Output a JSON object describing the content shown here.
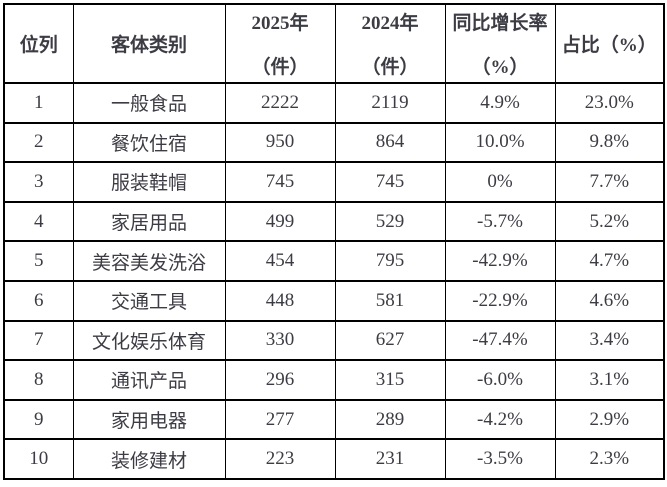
{
  "colors": {
    "background": "#ffffff",
    "border": "#000000",
    "text": "#3c3c44"
  },
  "table": {
    "header": [
      {
        "line1": "位列",
        "line2": ""
      },
      {
        "line1": "客体类别",
        "line2": ""
      },
      {
        "line1": "2025年",
        "line2": "（件）"
      },
      {
        "line1": "2024年",
        "line2": "（件）"
      },
      {
        "line1": "同比增长率",
        "line2": "（%）"
      },
      {
        "line1": "占比（%）",
        "line2": ""
      }
    ],
    "rows": [
      {
        "rank": "1",
        "category": "一般食品",
        "y2025": "2222",
        "y2024": "2119",
        "growth": "4.9%",
        "share": "23.0%"
      },
      {
        "rank": "2",
        "category": "餐饮住宿",
        "y2025": "950",
        "y2024": "864",
        "growth": "10.0%",
        "share": "9.8%"
      },
      {
        "rank": "3",
        "category": "服装鞋帽",
        "y2025": "745",
        "y2024": "745",
        "growth": "0%",
        "share": "7.7%"
      },
      {
        "rank": "4",
        "category": "家居用品",
        "y2025": "499",
        "y2024": "529",
        "growth": "-5.7%",
        "share": "5.2%"
      },
      {
        "rank": "5",
        "category": "美容美发洗浴",
        "y2025": "454",
        "y2024": "795",
        "growth": "-42.9%",
        "share": "4.7%"
      },
      {
        "rank": "6",
        "category": "交通工具",
        "y2025": "448",
        "y2024": "581",
        "growth": "-22.9%",
        "share": "4.6%"
      },
      {
        "rank": "7",
        "category": "文化娱乐体育",
        "y2025": "330",
        "y2024": "627",
        "growth": "-47.4%",
        "share": "3.4%"
      },
      {
        "rank": "8",
        "category": "通讯产品",
        "y2025": "296",
        "y2024": "315",
        "growth": "-6.0%",
        "share": "3.1%"
      },
      {
        "rank": "9",
        "category": "家用电器",
        "y2025": "277",
        "y2024": "289",
        "growth": "-4.2%",
        "share": "2.9%"
      },
      {
        "rank": "10",
        "category": "装修建材",
        "y2025": "223",
        "y2024": "231",
        "growth": "-3.5%",
        "share": "2.3%"
      }
    ]
  },
  "chart_data": {
    "type": "table",
    "title": "",
    "columns": [
      "位列",
      "客体类别",
      "2025年（件）",
      "2024年（件）",
      "同比增长率（%）",
      "占比（%）"
    ],
    "rows": [
      [
        1,
        "一般食品",
        2222,
        2119,
        "4.9%",
        "23.0%"
      ],
      [
        2,
        "餐饮住宿",
        950,
        864,
        "10.0%",
        "9.8%"
      ],
      [
        3,
        "服装鞋帽",
        745,
        745,
        "0%",
        "7.7%"
      ],
      [
        4,
        "家居用品",
        499,
        529,
        "-5.7%",
        "5.2%"
      ],
      [
        5,
        "美容美发洗浴",
        454,
        795,
        "-42.9%",
        "4.7%"
      ],
      [
        6,
        "交通工具",
        448,
        581,
        "-22.9%",
        "4.6%"
      ],
      [
        7,
        "文化娱乐体育",
        330,
        627,
        "-47.4%",
        "3.4%"
      ],
      [
        8,
        "通讯产品",
        296,
        315,
        "-6.0%",
        "3.1%"
      ],
      [
        9,
        "家用电器",
        277,
        289,
        "-4.2%",
        "2.9%"
      ],
      [
        10,
        "装修建材",
        223,
        231,
        "-3.5%",
        "2.3%"
      ]
    ]
  }
}
